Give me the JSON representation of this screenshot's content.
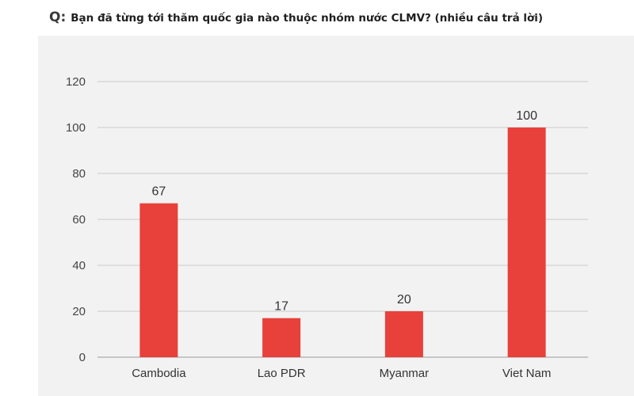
{
  "question": {
    "prefix": "Q:",
    "text": "Bạn đã từng tới thăm quốc gia nào thuộc nhóm nước CLMV? (nhiều câu trả lời)"
  },
  "chart_data": {
    "type": "bar",
    "categories": [
      "Cambodia",
      "Lao PDR",
      "Myanmar",
      "Viet Nam"
    ],
    "values": [
      67,
      17,
      20,
      100
    ],
    "data_labels": [
      "67",
      "17",
      "20",
      "100"
    ],
    "ylim": [
      0,
      120
    ],
    "yticks": [
      0,
      20,
      40,
      60,
      80,
      100,
      120
    ],
    "grid": true,
    "legend": "none",
    "bar_color": "#e8403a",
    "grid_color": "#c9c9c9"
  }
}
